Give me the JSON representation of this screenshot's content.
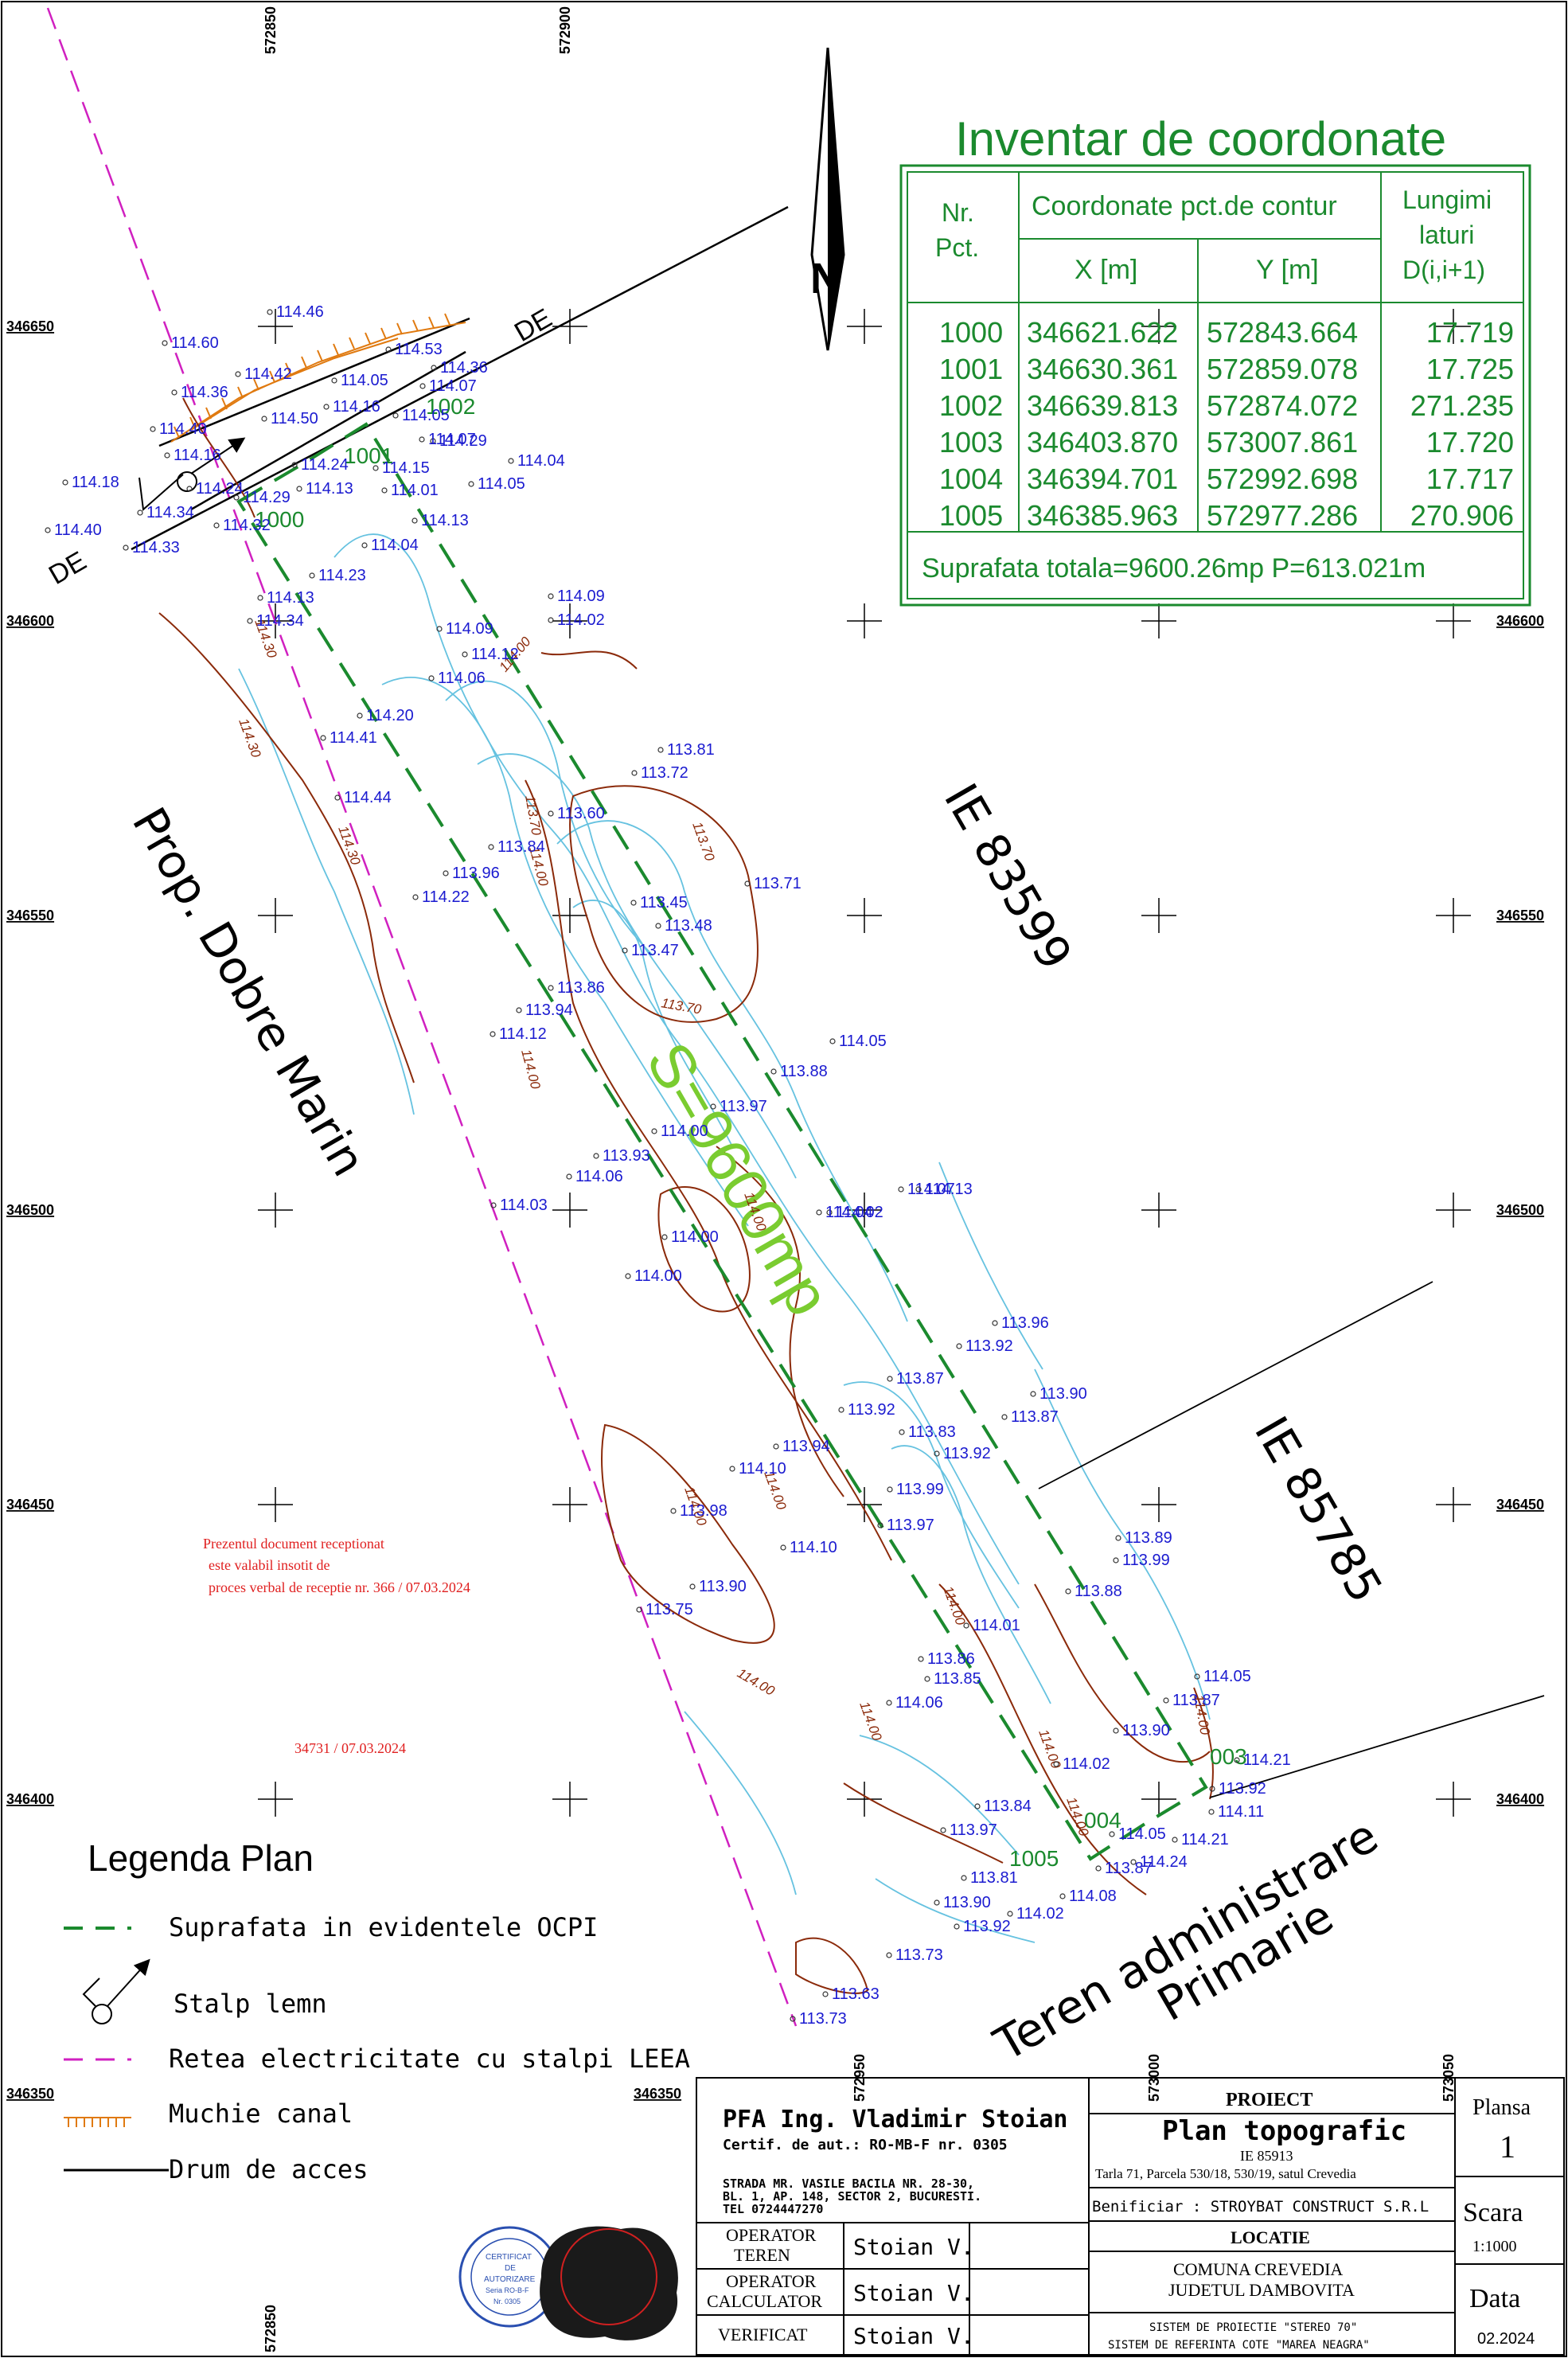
{
  "grid": {
    "x_labels": [
      "572850",
      "572900",
      "572950",
      "573000",
      "573050"
    ],
    "y_labels": [
      "346650",
      "346600",
      "346550",
      "346500",
      "346450",
      "346400",
      "346350"
    ],
    "left_corner_label": "346350",
    "bottom_x_label": "572850"
  },
  "north": {
    "letter": "N"
  },
  "inventory": {
    "title": "Inventar de coordonate",
    "header_nr": "Nr.\nPct.",
    "header_coord": "Coordonate pct.de contur",
    "header_x": "X [m]",
    "header_y": "Y [m]",
    "header_len": "Lungimi\nlaturi\nD(i,i+1)",
    "rows": [
      {
        "nr": "1000",
        "x": "346621.622",
        "y": "572843.664",
        "d": "17.719"
      },
      {
        "nr": "1001",
        "x": "346630.361",
        "y": "572859.078",
        "d": "17.725"
      },
      {
        "nr": "1002",
        "x": "346639.813",
        "y": "572874.072",
        "d": "271.235"
      },
      {
        "nr": "1003",
        "x": "346403.870",
        "y": "573007.861",
        "d": "17.720"
      },
      {
        "nr": "1004",
        "x": "346394.701",
        "y": "572992.698",
        "d": "17.717"
      },
      {
        "nr": "1005",
        "x": "346385.963",
        "y": "572977.286",
        "d": "270.906"
      }
    ],
    "footer": "Suprafata totala=9600.26mp  P=613.021m"
  },
  "map_labels": {
    "neighbor_left": "Prop. Dobre Marin",
    "neighbor_right_top": "IE 83599",
    "neighbor_right_bottom": "IE 85785",
    "neighbor_bottom_1": "Teren administrare",
    "neighbor_bottom_2": "Primarie",
    "area": "S=9600mp",
    "road_top": "DE",
    "road_left": "DE",
    "pt_1000": "1000",
    "pt_1001": "1001",
    "pt_1002": "1002",
    "pt_1003": "003",
    "pt_1004": "004",
    "pt_1005": "1005"
  },
  "contour_labels": [
    "114.30",
    "114.30",
    "114.30",
    "114.00",
    "113.70",
    "113.70",
    "113.70",
    "114.00",
    "114.00",
    "114.00",
    "114.00",
    "114.00",
    "114.00",
    "114.00",
    "114.00",
    "114.00",
    "114.00",
    "114.00"
  ],
  "spot_heights": [
    "114.46",
    "114.60",
    "114.53",
    "114.42",
    "114.36",
    "114.05",
    "114.16",
    "114.07",
    "114.50",
    "114.40",
    "114.36",
    "114.05",
    "114.29",
    "114.07",
    "114.16",
    "114.18",
    "114.04",
    "114.24",
    "114.15",
    "114.24",
    "114.13",
    "114.01",
    "114.05",
    "114.34",
    "114.29",
    "114.32",
    "114.40",
    "114.33",
    "114.13",
    "114.04",
    "114.23",
    "114.13",
    "114.34",
    "114.09",
    "114.09",
    "114.02",
    "114.12",
    "114.06",
    "114.20",
    "114.41",
    "113.81",
    "113.72",
    "114.44",
    "113.60",
    "113.84",
    "113.96",
    "114.22",
    "113.71",
    "113.45",
    "113.48",
    "113.47",
    "113.86",
    "113.94",
    "114.12",
    "114.05",
    "113.88",
    "113.97",
    "114.00",
    "113.93",
    "114.06",
    "114.03",
    "114.02",
    "114.07",
    "114.13",
    "114.00",
    "114.00",
    "114.04",
    "113.96",
    "113.92",
    "113.87",
    "113.90",
    "113.92",
    "113.87",
    "113.83",
    "113.92",
    "113.94",
    "114.10",
    "113.99",
    "113.98",
    "113.97",
    "114.10",
    "113.89",
    "113.99",
    "113.90",
    "113.75",
    "113.88",
    "114.01",
    "113.86",
    "113.85",
    "114.06",
    "114.05",
    "113.87",
    "113.90",
    "114.02",
    "114.21",
    "113.92",
    "114.11",
    "113.84",
    "113.97",
    "114.05",
    "114.21",
    "113.87",
    "114.24",
    "113.81",
    "114.08",
    "113.90",
    "114.02",
    "113.92",
    "113.73",
    "113.63",
    "113.73"
  ],
  "notes": {
    "reception_1": "Prezentul document receptionat",
    "reception_2": "este valabil insotit de",
    "reception_3": "proces verbal de receptie nr. 366 / 07.03.2024",
    "register": "34731 / 07.03.2024"
  },
  "legend": {
    "title": "Legenda Plan",
    "items": [
      "Suprafata in evidentele OCPI",
      "Stalp lemn",
      "Retea electricitate cu stalpi LEEA",
      "Muchie canal",
      "Drum de acces"
    ]
  },
  "title_block": {
    "firm": "PFA Ing. Vladimir Stoian",
    "cert": "Certif. de aut.: RO-MB-F nr. 0305",
    "addr_1": "STRADA MR. VASILE BACILA NR. 28-30,",
    "addr_2": "BL. 1, AP. 148, SECTOR 2, BUCURESTI.",
    "addr_3": "TEL 0724447270",
    "op_teren_1": "OPERATOR",
    "op_teren_2": "TEREN",
    "op_teren_name": "Stoian V.",
    "op_calc_1": "OPERATOR",
    "op_calc_2": "CALCULATOR",
    "op_calc_name": "Stoian V.",
    "verif": "VERIFICAT",
    "verif_name": "Stoian V.",
    "proiect_label": "PROIECT",
    "proiect_title": "Plan topografic",
    "proiect_ie": "IE 85913",
    "proiect_loc": "Tarla 71, Parcela 530/18, 530/19, satul Crevedia",
    "beneficiar": "Benificiar : STROYBAT CONSTRUCT S.R.L",
    "locatie_label": "LOCATIE",
    "locatie_1": "COMUNA CREVEDIA",
    "locatie_2": "JUDETUL DAMBOVITA",
    "sistem_1": "SISTEM DE PROIECTIE \"STEREO 70\"",
    "sistem_2": "SISTEM DE REFERINTA COTE \"MAREA NEAGRA\"",
    "plansa_label": "Plansa",
    "plansa_val": "1",
    "scara_label": "Scara",
    "scara_val": "1:1000",
    "data_label": "Data",
    "data_val": "02.2024"
  },
  "stamp": {
    "line_1": "CERTIFICAT",
    "line_2": "DE",
    "line_3": "AUTORIZARE",
    "line_4": "Seria RO-B-F",
    "line_5": "Nr. 0305"
  }
}
